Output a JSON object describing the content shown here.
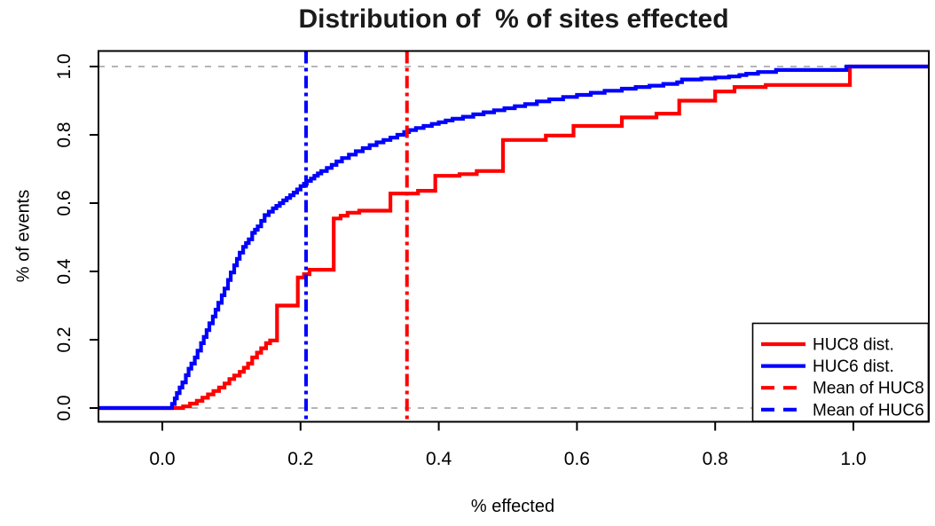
{
  "chart_data": {
    "type": "line",
    "subtype": "ecdf-step",
    "title": "Distribution of  % of sites effected",
    "xlabel": "% effected",
    "ylabel": "% of events",
    "xlim": [
      -0.092,
      1.109
    ],
    "ylim": [
      -0.039,
      1.044
    ],
    "xticks": {
      "values": [
        0,
        0.2,
        0.4,
        0.6,
        0.8,
        1.0
      ],
      "labels": [
        "0.0",
        "0.2",
        "0.4",
        "0.6",
        "0.8",
        "1.0"
      ]
    },
    "yticks": {
      "values": [
        0,
        0.2,
        0.4,
        0.6,
        0.8,
        1.0
      ],
      "labels": [
        "0.0",
        "0.2",
        "0.4",
        "0.6",
        "0.8",
        "1.0"
      ]
    },
    "gridlines": {
      "y": [
        0,
        1
      ],
      "style": "dashed",
      "color": "#ababab"
    },
    "colors": {
      "huc8": "#ff0000",
      "huc6": "#0000ff",
      "frame": "#000000",
      "grid": "#ababab"
    },
    "series": [
      {
        "name": "HUC8 dist.",
        "id": "huc8-dist",
        "color": "#ff0000",
        "step": true,
        "points": [
          [
            -0.092,
            0
          ],
          [
            0.03,
            0.005
          ],
          [
            0.04,
            0.013
          ],
          [
            0.05,
            0.021
          ],
          [
            0.058,
            0.03
          ],
          [
            0.066,
            0.04
          ],
          [
            0.074,
            0.05
          ],
          [
            0.082,
            0.06
          ],
          [
            0.09,
            0.072
          ],
          [
            0.097,
            0.085
          ],
          [
            0.104,
            0.095
          ],
          [
            0.112,
            0.106
          ],
          [
            0.118,
            0.118
          ],
          [
            0.124,
            0.13
          ],
          [
            0.13,
            0.148
          ],
          [
            0.137,
            0.162
          ],
          [
            0.143,
            0.175
          ],
          [
            0.15,
            0.19
          ],
          [
            0.156,
            0.198
          ],
          [
            0.166,
            0.3
          ],
          [
            0.196,
            0.382
          ],
          [
            0.205,
            0.392
          ],
          [
            0.213,
            0.405
          ],
          [
            0.248,
            0.555
          ],
          [
            0.258,
            0.563
          ],
          [
            0.268,
            0.572
          ],
          [
            0.285,
            0.578
          ],
          [
            0.33,
            0.628
          ],
          [
            0.37,
            0.636
          ],
          [
            0.395,
            0.68
          ],
          [
            0.43,
            0.685
          ],
          [
            0.455,
            0.694
          ],
          [
            0.493,
            0.785
          ],
          [
            0.555,
            0.798
          ],
          [
            0.595,
            0.826
          ],
          [
            0.665,
            0.851
          ],
          [
            0.715,
            0.862
          ],
          [
            0.748,
            0.9
          ],
          [
            0.8,
            0.927
          ],
          [
            0.828,
            0.94
          ],
          [
            0.873,
            0.946
          ],
          [
            0.995,
            1.0
          ],
          [
            1.109,
            1.0
          ]
        ]
      },
      {
        "name": "HUC6 dist.",
        "id": "huc6-dist",
        "color": "#0000ff",
        "step": true,
        "points": [
          [
            -0.092,
            0
          ],
          [
            0.01,
            0
          ],
          [
            0.014,
            0.012
          ],
          [
            0.018,
            0.028
          ],
          [
            0.021,
            0.044
          ],
          [
            0.025,
            0.06
          ],
          [
            0.029,
            0.075
          ],
          [
            0.034,
            0.096
          ],
          [
            0.038,
            0.115
          ],
          [
            0.042,
            0.13
          ],
          [
            0.047,
            0.148
          ],
          [
            0.051,
            0.168
          ],
          [
            0.056,
            0.19
          ],
          [
            0.06,
            0.208
          ],
          [
            0.064,
            0.228
          ],
          [
            0.068,
            0.248
          ],
          [
            0.073,
            0.268
          ],
          [
            0.077,
            0.288
          ],
          [
            0.081,
            0.308
          ],
          [
            0.086,
            0.33
          ],
          [
            0.09,
            0.35
          ],
          [
            0.095,
            0.375
          ],
          [
            0.099,
            0.397
          ],
          [
            0.104,
            0.418
          ],
          [
            0.108,
            0.437
          ],
          [
            0.112,
            0.455
          ],
          [
            0.117,
            0.472
          ],
          [
            0.121,
            0.483
          ],
          [
            0.125,
            0.494
          ],
          [
            0.13,
            0.513
          ],
          [
            0.134,
            0.522
          ],
          [
            0.138,
            0.532
          ],
          [
            0.143,
            0.548
          ],
          [
            0.148,
            0.565
          ],
          [
            0.154,
            0.575
          ],
          [
            0.16,
            0.585
          ],
          [
            0.165,
            0.592
          ],
          [
            0.17,
            0.6
          ],
          [
            0.175,
            0.608
          ],
          [
            0.18,
            0.615
          ],
          [
            0.185,
            0.623
          ],
          [
            0.19,
            0.631
          ],
          [
            0.195,
            0.64
          ],
          [
            0.2,
            0.65
          ],
          [
            0.205,
            0.657
          ],
          [
            0.209,
            0.665
          ],
          [
            0.215,
            0.672
          ],
          [
            0.22,
            0.68
          ],
          [
            0.225,
            0.687
          ],
          [
            0.23,
            0.694
          ],
          [
            0.238,
            0.703
          ],
          [
            0.245,
            0.712
          ],
          [
            0.252,
            0.722
          ],
          [
            0.26,
            0.732
          ],
          [
            0.27,
            0.742
          ],
          [
            0.28,
            0.752
          ],
          [
            0.29,
            0.761
          ],
          [
            0.3,
            0.77
          ],
          [
            0.31,
            0.778
          ],
          [
            0.32,
            0.785
          ],
          [
            0.33,
            0.792
          ],
          [
            0.34,
            0.8
          ],
          [
            0.35,
            0.808
          ],
          [
            0.357,
            0.814
          ],
          [
            0.367,
            0.82
          ],
          [
            0.378,
            0.826
          ],
          [
            0.39,
            0.832
          ],
          [
            0.4,
            0.837
          ],
          [
            0.41,
            0.842
          ],
          [
            0.42,
            0.847
          ],
          [
            0.435,
            0.853
          ],
          [
            0.45,
            0.86
          ],
          [
            0.465,
            0.866
          ],
          [
            0.48,
            0.872
          ],
          [
            0.495,
            0.878
          ],
          [
            0.51,
            0.884
          ],
          [
            0.525,
            0.89
          ],
          [
            0.542,
            0.898
          ],
          [
            0.56,
            0.904
          ],
          [
            0.58,
            0.911
          ],
          [
            0.6,
            0.917
          ],
          [
            0.62,
            0.923
          ],
          [
            0.64,
            0.929
          ],
          [
            0.665,
            0.935
          ],
          [
            0.685,
            0.94
          ],
          [
            0.705,
            0.944
          ],
          [
            0.725,
            0.949
          ],
          [
            0.745,
            0.954
          ],
          [
            0.752,
            0.962
          ],
          [
            0.78,
            0.965
          ],
          [
            0.8,
            0.968
          ],
          [
            0.82,
            0.971
          ],
          [
            0.835,
            0.975
          ],
          [
            0.845,
            0.979
          ],
          [
            0.862,
            0.984
          ],
          [
            0.888,
            0.99
          ],
          [
            0.99,
            1.0
          ],
          [
            1.109,
            1.0
          ]
        ]
      }
    ],
    "mean_lines": [
      {
        "name": "Mean of HUC8",
        "id": "mean-huc8",
        "color": "#ff0000",
        "x": 0.354
      },
      {
        "name": "Mean of HUC6",
        "id": "mean-huc6",
        "color": "#0000ff",
        "x": 0.208
      }
    ],
    "legend": {
      "position": "bottom-right",
      "entries": [
        {
          "label": "HUC8 dist.",
          "color": "#ff0000",
          "line": "solid"
        },
        {
          "label": "HUC6 dist.",
          "color": "#0000ff",
          "line": "solid"
        },
        {
          "label": "Mean of HUC8",
          "color": "#ff0000",
          "line": "dashed"
        },
        {
          "label": "Mean of HUC6",
          "color": "#0000ff",
          "line": "dashed"
        }
      ]
    }
  }
}
